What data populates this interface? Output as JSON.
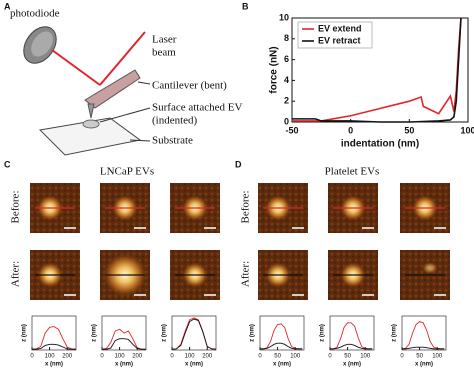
{
  "panel_a": {
    "label": "A",
    "photodiode": "photodiode",
    "laser": [
      "Laser",
      "beam"
    ],
    "cantilever": "Cantilever (bent)",
    "ev": [
      "Surface attached EV",
      "(indented)"
    ],
    "substrate": "Substrate"
  },
  "panel_c": {
    "label": "C",
    "title": "LNCaP EVs",
    "before": "Before:",
    "after": "After:"
  },
  "panel_d": {
    "label": "D",
    "title": "Platelet EVs",
    "before": "Before:",
    "after": "After:"
  },
  "chart_data": [
    {
      "type": "line",
      "panel": "B",
      "xlabel": "indentation (nm)",
      "ylabel": "force (nN)",
      "xlim": [
        -50,
        100
      ],
      "xticks": [
        -50,
        0,
        50,
        100
      ],
      "ylim": [
        0,
        10
      ],
      "yticks": [
        0,
        2,
        4,
        6,
        8,
        10
      ],
      "legend": "upper left",
      "series": [
        {
          "name": "EV extend",
          "color": "#e0262b",
          "x": [
            -50,
            -25,
            0,
            25,
            50,
            60,
            62,
            75,
            85,
            88,
            90,
            92,
            94
          ],
          "values": [
            0.1,
            0.1,
            0.6,
            1.3,
            2.0,
            2.4,
            1.5,
            0.8,
            2.5,
            1.0,
            3,
            7,
            10
          ]
        },
        {
          "name": "EV retract",
          "color": "#111111",
          "x": [
            -50,
            -30,
            -25,
            0,
            25,
            50,
            75,
            85,
            88,
            90,
            92,
            94
          ],
          "values": [
            0.3,
            0.3,
            0.1,
            0.1,
            0,
            0,
            0.1,
            0.2,
            0.5,
            2,
            6,
            10
          ]
        }
      ]
    },
    {
      "type": "line",
      "xlabel": "x (nm)",
      "ylabel": "z (nm)",
      "xlim": [
        0,
        250
      ],
      "xticks": [
        0,
        100,
        200
      ],
      "ylim": [
        0,
        90
      ],
      "x": [
        0,
        25,
        50,
        75,
        100,
        125,
        150,
        175,
        200,
        225,
        250
      ],
      "series": [
        {
          "color": "#e0262b",
          "values": [
            2,
            3,
            10,
            45,
            60,
            62,
            55,
            30,
            8,
            3,
            2
          ]
        },
        {
          "color": "#111111",
          "values": [
            2,
            2,
            4,
            12,
            15,
            15,
            13,
            8,
            3,
            2,
            2
          ]
        }
      ]
    },
    {
      "type": "line",
      "xlabel": "x (nm)",
      "ylabel": "z (nm)",
      "xlim": [
        0,
        250
      ],
      "xticks": [
        0,
        100,
        200
      ],
      "ylim": [
        0,
        90
      ],
      "x": [
        0,
        25,
        50,
        75,
        100,
        125,
        150,
        175,
        200,
        225,
        250
      ],
      "series": [
        {
          "color": "#e0262b",
          "values": [
            2,
            4,
            20,
            50,
            55,
            45,
            50,
            30,
            6,
            2,
            2
          ]
        },
        {
          "color": "#111111",
          "values": [
            2,
            2,
            5,
            25,
            30,
            30,
            28,
            15,
            4,
            2,
            2
          ]
        }
      ]
    },
    {
      "type": "line",
      "xlabel": "x (nm)",
      "ylabel": "z (nm)",
      "xlim": [
        0,
        250
      ],
      "xticks": [
        0,
        100,
        200
      ],
      "ylim": [
        0,
        90
      ],
      "x": [
        0,
        25,
        50,
        75,
        100,
        125,
        150,
        175,
        200,
        225,
        250
      ],
      "series": [
        {
          "color": "#e0262b",
          "values": [
            2,
            3,
            15,
            50,
            80,
            85,
            80,
            50,
            10,
            3,
            2
          ]
        },
        {
          "color": "#111111",
          "values": [
            2,
            3,
            12,
            45,
            75,
            82,
            78,
            48,
            9,
            3,
            2
          ]
        }
      ]
    },
    {
      "type": "line",
      "xlabel": "x (nm)",
      "ylabel": "z (nm)",
      "xlim": [
        0,
        125
      ],
      "xticks": [
        0,
        50,
        100
      ],
      "ylim": [
        0,
        60
      ],
      "x": [
        0,
        10,
        20,
        30,
        40,
        50,
        60,
        70,
        80,
        90,
        100,
        110,
        120
      ],
      "series": [
        {
          "color": "#e0262b",
          "values": [
            2,
            2,
            4,
            15,
            35,
            45,
            46,
            40,
            20,
            6,
            3,
            2,
            2
          ]
        },
        {
          "color": "#111111",
          "values": [
            2,
            2,
            3,
            6,
            10,
            12,
            12,
            10,
            6,
            3,
            2,
            2,
            2
          ]
        }
      ]
    },
    {
      "type": "line",
      "xlabel": "x (nm)",
      "ylabel": "z (nm)",
      "xlim": [
        0,
        125
      ],
      "xticks": [
        0,
        50,
        100
      ],
      "ylim": [
        0,
        60
      ],
      "x": [
        0,
        10,
        20,
        30,
        40,
        50,
        60,
        70,
        80,
        90,
        100,
        110,
        120
      ],
      "series": [
        {
          "color": "#e0262b",
          "values": [
            2,
            2,
            5,
            20,
            40,
            48,
            48,
            42,
            22,
            6,
            3,
            2,
            2
          ]
        },
        {
          "color": "#111111",
          "values": [
            2,
            2,
            3,
            5,
            8,
            10,
            10,
            8,
            5,
            3,
            2,
            2,
            2
          ]
        }
      ]
    },
    {
      "type": "line",
      "xlabel": "x (nm)",
      "ylabel": "z (nm)",
      "xlim": [
        0,
        125
      ],
      "xticks": [
        0,
        50,
        100
      ],
      "ylim": [
        0,
        60
      ],
      "x": [
        0,
        10,
        20,
        30,
        40,
        50,
        60,
        70,
        80,
        90,
        100,
        110,
        120
      ],
      "series": [
        {
          "color": "#e0262b",
          "values": [
            2,
            3,
            10,
            30,
            45,
            50,
            48,
            35,
            15,
            5,
            3,
            2,
            2
          ]
        },
        {
          "color": "#111111",
          "values": [
            2,
            2,
            3,
            4,
            5,
            5,
            5,
            4,
            3,
            2,
            2,
            2,
            2
          ]
        }
      ]
    }
  ]
}
